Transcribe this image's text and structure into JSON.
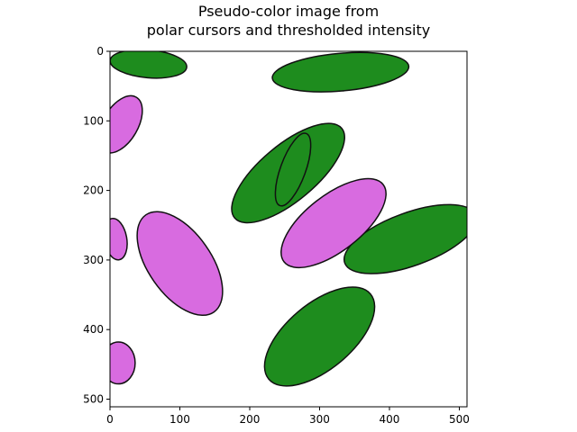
{
  "chart_data": {
    "type": "image",
    "title_lines": [
      "Pseudo-color image from",
      "polar cursors and thresholded intensity"
    ],
    "xlabel": "",
    "ylabel": "",
    "xlim": [
      0,
      511
    ],
    "ylim": [
      511,
      0
    ],
    "xticks": [
      0,
      100,
      200,
      300,
      400,
      500
    ],
    "yticks": [
      0,
      100,
      200,
      300,
      400,
      500
    ],
    "background_color": "#ffffff",
    "colors": {
      "green_class": "#1e8c1e",
      "magenta_class": "#d86be0",
      "edge": "#111111"
    },
    "cells": [
      {
        "class": "green",
        "cx": 255,
        "cy": 175,
        "rx": 100,
        "ry": 40,
        "angle": -40
      },
      {
        "class": "green",
        "cx": 330,
        "cy": 30,
        "rx": 98,
        "ry": 27,
        "angle": -5
      },
      {
        "class": "green",
        "cx": 430,
        "cy": 270,
        "rx": 100,
        "ry": 38,
        "angle": -20
      },
      {
        "class": "green",
        "cx": 300,
        "cy": 410,
        "rx": 95,
        "ry": 47,
        "angle": -40
      },
      {
        "class": "green",
        "cx": 262,
        "cy": 170,
        "rx": 55,
        "ry": 18,
        "angle": -70
      },
      {
        "class": "green",
        "cx": 55,
        "cy": 18,
        "rx": 55,
        "ry": 20,
        "angle": 5
      },
      {
        "class": "magenta",
        "cx": 320,
        "cy": 247,
        "rx": 90,
        "ry": 40,
        "angle": -38
      },
      {
        "class": "magenta",
        "cx": 100,
        "cy": 305,
        "rx": 85,
        "ry": 45,
        "angle": 55
      },
      {
        "class": "magenta",
        "cx": 15,
        "cy": 105,
        "rx": 45,
        "ry": 25,
        "angle": -60
      },
      {
        "class": "magenta",
        "cx": 8,
        "cy": 270,
        "rx": 30,
        "ry": 16,
        "angle": 80
      },
      {
        "class": "magenta",
        "cx": 12,
        "cy": 448,
        "rx": 24,
        "ry": 30,
        "angle": 0
      }
    ]
  }
}
